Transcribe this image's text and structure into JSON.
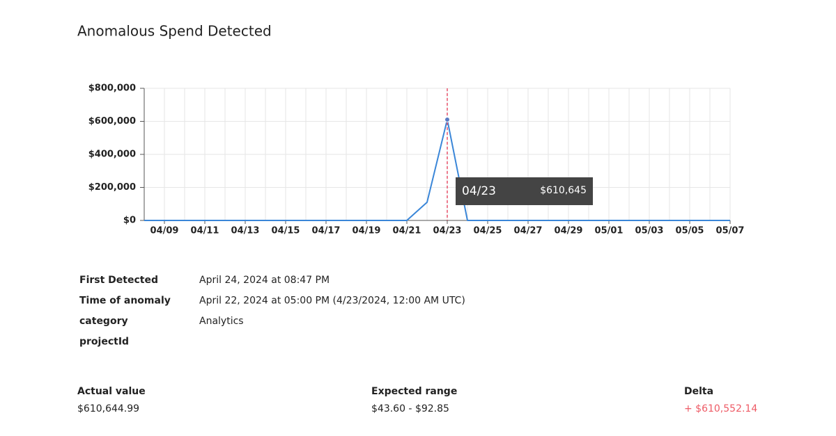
{
  "title": "Anomalous Spend Detected",
  "chart_data": {
    "type": "line",
    "categories": [
      null,
      "04/09",
      null,
      "04/11",
      null,
      "04/13",
      null,
      "04/15",
      null,
      "04/17",
      null,
      "04/19",
      null,
      "04/21",
      null,
      "04/23",
      null,
      "04/25",
      null,
      "04/27",
      null,
      "04/29",
      null,
      "05/01",
      null,
      "05/03",
      null,
      "05/05",
      null,
      "05/07"
    ],
    "series": [
      {
        "color": "#3a86d8",
        "values": [
          0,
          0,
          0,
          0,
          0,
          0,
          0,
          0,
          0,
          0,
          0,
          0,
          0,
          0,
          110000,
          610645,
          0,
          0,
          0,
          0,
          0,
          0,
          0,
          0,
          0,
          0,
          0,
          0,
          0,
          0
        ]
      }
    ],
    "ylim": [
      0,
      800000
    ],
    "yticks": [
      {
        "value": 0,
        "label": "$0"
      },
      {
        "value": 200000,
        "label": "$200,000"
      },
      {
        "value": 400000,
        "label": "$400,000"
      },
      {
        "value": 600000,
        "label": "$600,000"
      },
      {
        "value": 800000,
        "label": "$800,000"
      }
    ],
    "grid": true,
    "tooltip": {
      "category": "04/23",
      "value": "$610,645"
    }
  },
  "details": [
    {
      "label": "First Detected",
      "value": "April 24, 2024 at 08:47 PM"
    },
    {
      "label": "Time of anomaly",
      "value": "April 22, 2024 at 05:00 PM (4/23/2024, 12:00 AM UTC)"
    },
    {
      "label": "category",
      "value": "Analytics"
    },
    {
      "label": "projectId"
    }
  ],
  "summary": [
    {
      "label": "Actual value",
      "value": "$610,644.99"
    },
    {
      "label": "Expected range",
      "value": "$43.60 - $92.85"
    },
    {
      "label": "Delta",
      "value": "+ $610,552.14"
    }
  ]
}
